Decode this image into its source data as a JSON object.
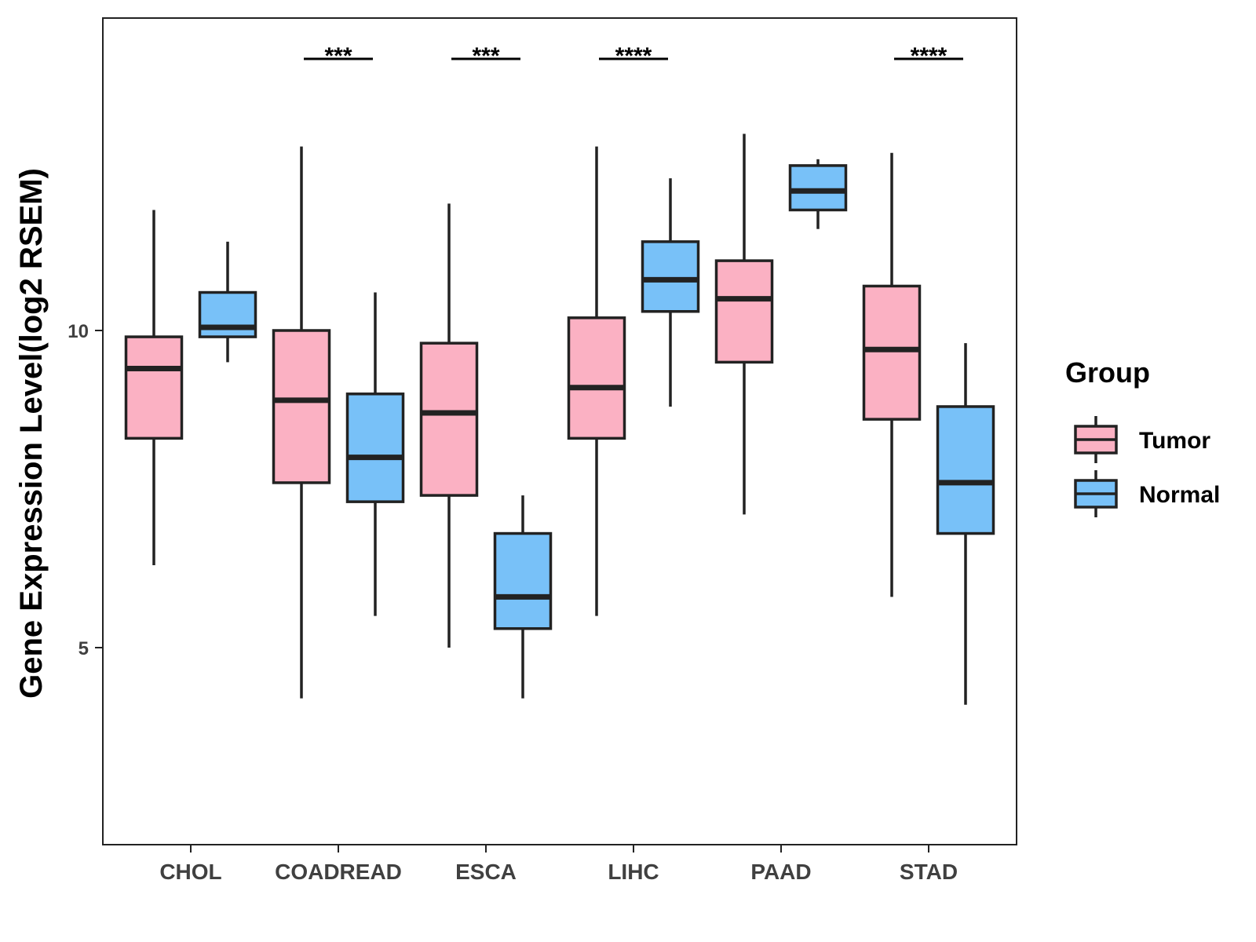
{
  "chart_data": {
    "type": "boxplot",
    "title": "",
    "xlabel": "",
    "ylabel": "Gene Expression Level(log2 RSEM)",
    "ylim": [
      2,
      15
    ],
    "y_ticks": [
      5,
      10
    ],
    "y_tick_labels": [
      "5",
      "10"
    ],
    "grid": false,
    "categories": [
      "CHOL",
      "COADREAD",
      "ESCA",
      "LIHC",
      "PAAD",
      "STAD"
    ],
    "groups": [
      {
        "name": "Tumor",
        "color": "#FBB1C3"
      },
      {
        "name": "Normal",
        "color": "#78C1F8"
      }
    ],
    "boxes": [
      {
        "category": "CHOL",
        "group": "Tumor",
        "whisker_low": 6.3,
        "q1": 8.3,
        "median": 9.4,
        "q3": 9.9,
        "whisker_high": 11.9
      },
      {
        "category": "CHOL",
        "group": "Normal",
        "whisker_low": 9.5,
        "q1": 9.9,
        "median": 10.05,
        "q3": 10.6,
        "whisker_high": 11.4
      },
      {
        "category": "COADREAD",
        "group": "Tumor",
        "whisker_low": 4.2,
        "q1": 7.6,
        "median": 8.9,
        "q3": 10.0,
        "whisker_high": 12.9
      },
      {
        "category": "COADREAD",
        "group": "Normal",
        "whisker_low": 5.5,
        "q1": 7.3,
        "median": 8.0,
        "q3": 9.0,
        "whisker_high": 10.6
      },
      {
        "category": "ESCA",
        "group": "Tumor",
        "whisker_low": 5.0,
        "q1": 7.4,
        "median": 8.7,
        "q3": 9.8,
        "whisker_high": 12.0
      },
      {
        "category": "ESCA",
        "group": "Normal",
        "whisker_low": 4.2,
        "q1": 5.3,
        "median": 5.8,
        "q3": 6.8,
        "whisker_high": 7.4
      },
      {
        "category": "LIHC",
        "group": "Tumor",
        "whisker_low": 5.5,
        "q1": 8.3,
        "median": 9.1,
        "q3": 10.2,
        "whisker_high": 12.9
      },
      {
        "category": "LIHC",
        "group": "Normal",
        "whisker_low": 8.8,
        "q1": 10.3,
        "median": 10.8,
        "q3": 11.4,
        "whisker_high": 12.4
      },
      {
        "category": "PAAD",
        "group": "Tumor",
        "whisker_low": 7.1,
        "q1": 9.5,
        "median": 10.5,
        "q3": 11.1,
        "whisker_high": 13.1
      },
      {
        "category": "PAAD",
        "group": "Normal",
        "whisker_low": 11.6,
        "q1": 11.9,
        "median": 12.2,
        "q3": 12.6,
        "whisker_high": 12.7
      },
      {
        "category": "STAD",
        "group": "Tumor",
        "whisker_low": 5.8,
        "q1": 8.6,
        "median": 9.7,
        "q3": 10.7,
        "whisker_high": 12.8
      },
      {
        "category": "STAD",
        "group": "Normal",
        "whisker_low": 4.1,
        "q1": 6.8,
        "median": 7.6,
        "q3": 8.8,
        "whisker_high": 9.8
      }
    ],
    "significance": [
      {
        "category": "COADREAD",
        "label": "***"
      },
      {
        "category": "ESCA",
        "label": "***"
      },
      {
        "category": "LIHC",
        "label": "****"
      },
      {
        "category": "STAD",
        "label": "****"
      }
    ],
    "legend": {
      "title": "Group",
      "position": "right",
      "items": [
        "Tumor",
        "Normal"
      ]
    }
  }
}
